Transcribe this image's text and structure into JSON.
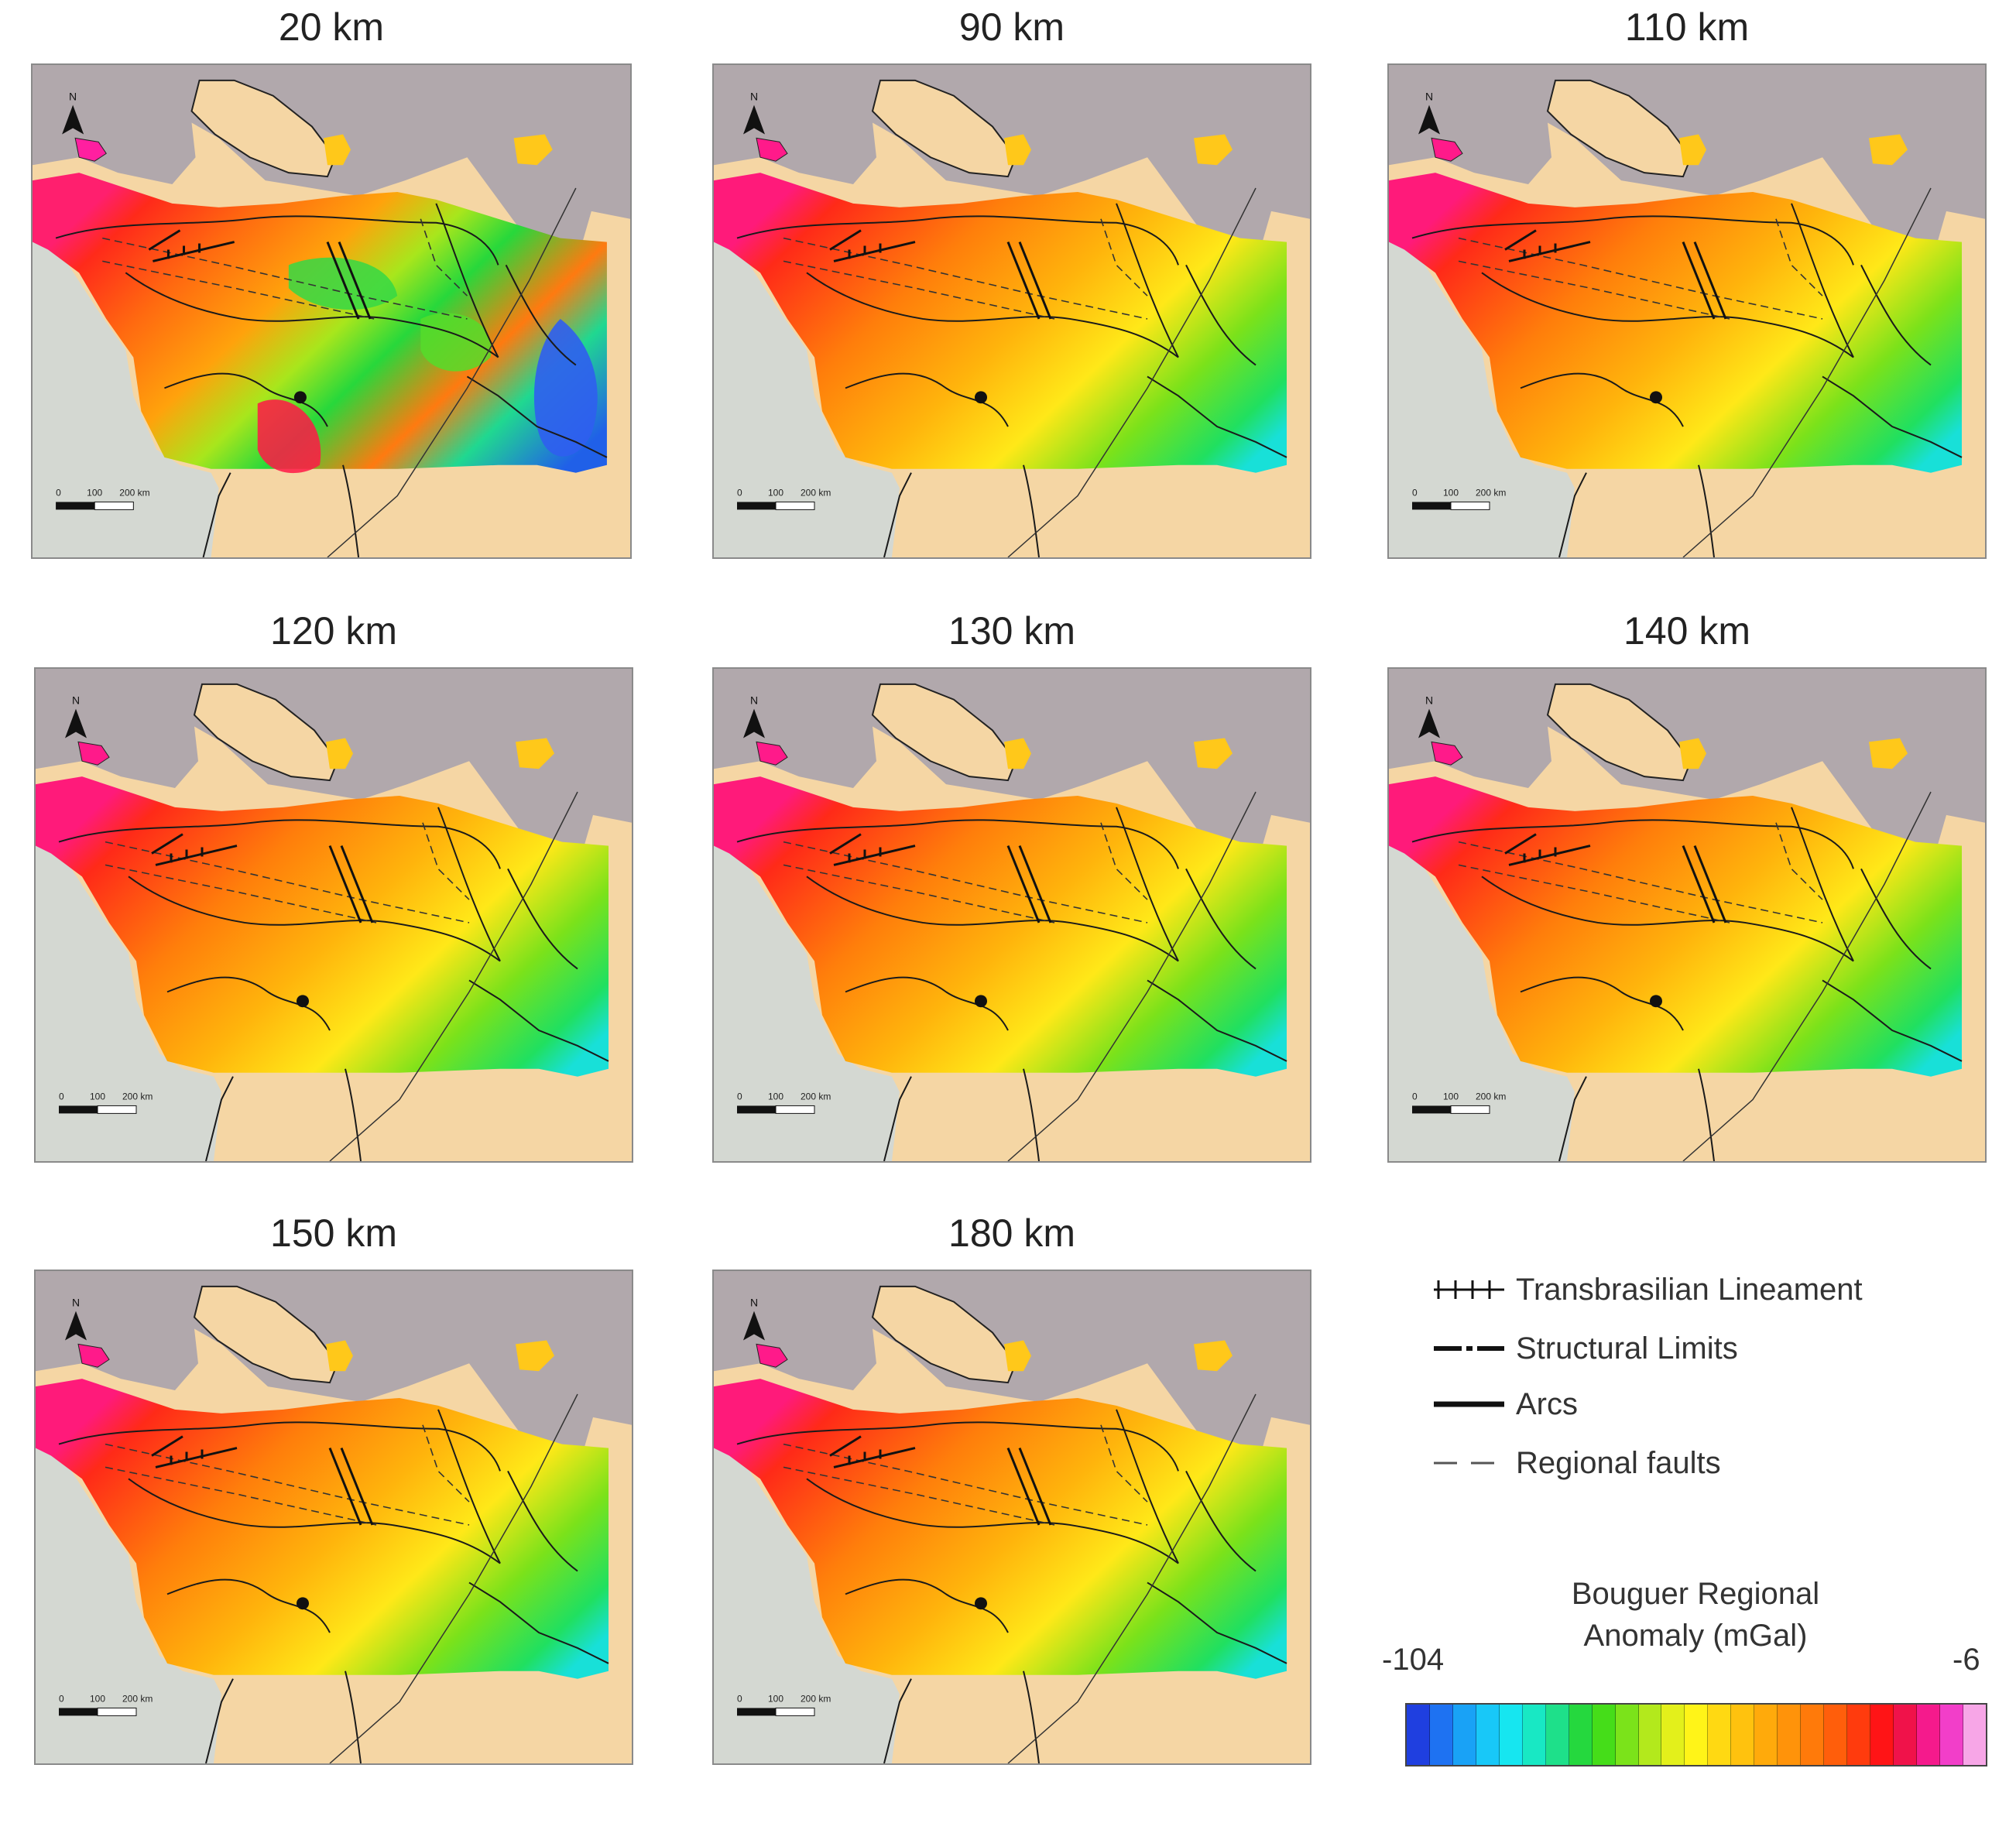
{
  "panels": [
    {
      "title": "20 km",
      "variant": "detail"
    },
    {
      "title": "90 km",
      "variant": "smooth"
    },
    {
      "title": "110 km",
      "variant": "smooth"
    },
    {
      "title": "120 km",
      "variant": "smooth"
    },
    {
      "title": "130 km",
      "variant": "smooth"
    },
    {
      "title": "140 km",
      "variant": "smooth"
    },
    {
      "title": "150 km",
      "variant": "smooth"
    },
    {
      "title": "180 km",
      "variant": "smooth"
    }
  ],
  "scale_bar": {
    "labels": [
      "0",
      "100",
      "200 km"
    ]
  },
  "north_arrow": {
    "label": "N",
    "icon": "north-arrow-icon"
  },
  "legend": {
    "items": [
      {
        "label": "Transbrasilian  Lineament",
        "symbol": "cross-hatched-line-icon"
      },
      {
        "label": "Structural Limits",
        "symbol": "dash-dot-line-icon"
      },
      {
        "label": "Arcs",
        "symbol": "thick-line-icon"
      },
      {
        "label": "Regional  faults",
        "symbol": "dashed-line-icon"
      }
    ]
  },
  "colorbar": {
    "title_line1": "Bouguer Regional",
    "title_line2": "Anomaly (mGal)",
    "min_label": "-104",
    "max_label": "-6",
    "colors": [
      "#1f3fe0",
      "#1e72f2",
      "#19a2f6",
      "#18c8f8",
      "#16e6f0",
      "#18e8c4",
      "#1ee08a",
      "#25d83e",
      "#45dd19",
      "#7be31a",
      "#b3e91c",
      "#e3f01b",
      "#fff418",
      "#ffd912",
      "#ffc20e",
      "#ffaa0b",
      "#ff930a",
      "#ff7a0a",
      "#ff5e0b",
      "#ff3b0d",
      "#ff1416",
      "#f0124a",
      "#f51a8c",
      "#f23ec9",
      "#f7a6e7"
    ]
  },
  "colors": {
    "land": "#f5d6a4",
    "ocean": "#b1a8ac",
    "basemap_relief": "#d4d8d2"
  }
}
